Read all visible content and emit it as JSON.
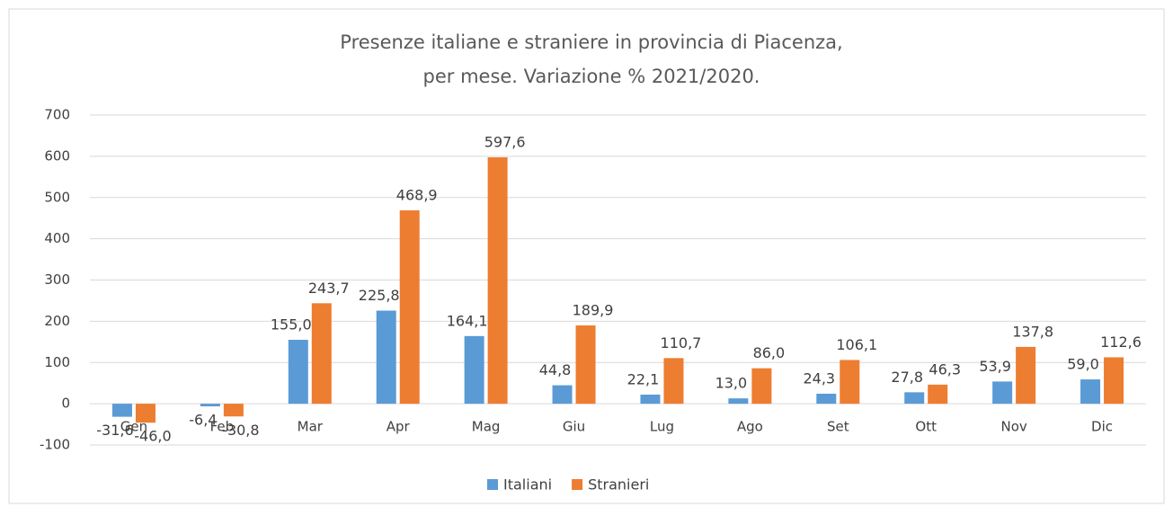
{
  "chart_data": {
    "type": "bar",
    "title": [
      "Presenze italiane e straniere in provincia di Piacenza,",
      "per mese. Variazione % 2021/2020."
    ],
    "categories": [
      "Gen",
      "Feb",
      "Mar",
      "Apr",
      "Mag",
      "Giu",
      "Lug",
      "Ago",
      "Set",
      "Ott",
      "Nov",
      "Dic"
    ],
    "series": [
      {
        "name": "Italiani",
        "color": "#5b9bd5",
        "values": [
          -31.6,
          -6.4,
          155.0,
          225.8,
          164.1,
          44.8,
          22.1,
          13.0,
          24.3,
          27.8,
          53.9,
          59.0
        ],
        "value_labels": [
          "-31,6",
          "-6,4",
          "155,0",
          "225,8",
          "164,1",
          "44,8",
          "22,1",
          "13,0",
          "24,3",
          "27,8",
          "53,9",
          "59,0"
        ]
      },
      {
        "name": "Stranieri",
        "color": "#ed7d31",
        "values": [
          -46.0,
          -30.8,
          243.7,
          468.9,
          597.6,
          189.9,
          110.7,
          86.0,
          106.1,
          46.3,
          137.8,
          112.6
        ],
        "value_labels": [
          "-46,0",
          "-30,8",
          "243,7",
          "468,9",
          "597,6",
          "189,9",
          "110,7",
          "86,0",
          "106,1",
          "46,3",
          "137,8",
          "112,6"
        ]
      }
    ],
    "ylim": [
      -100,
      700
    ],
    "yticks": [
      -100,
      0,
      100,
      200,
      300,
      400,
      500,
      600,
      700
    ],
    "grid": true,
    "legend": "bottom"
  }
}
